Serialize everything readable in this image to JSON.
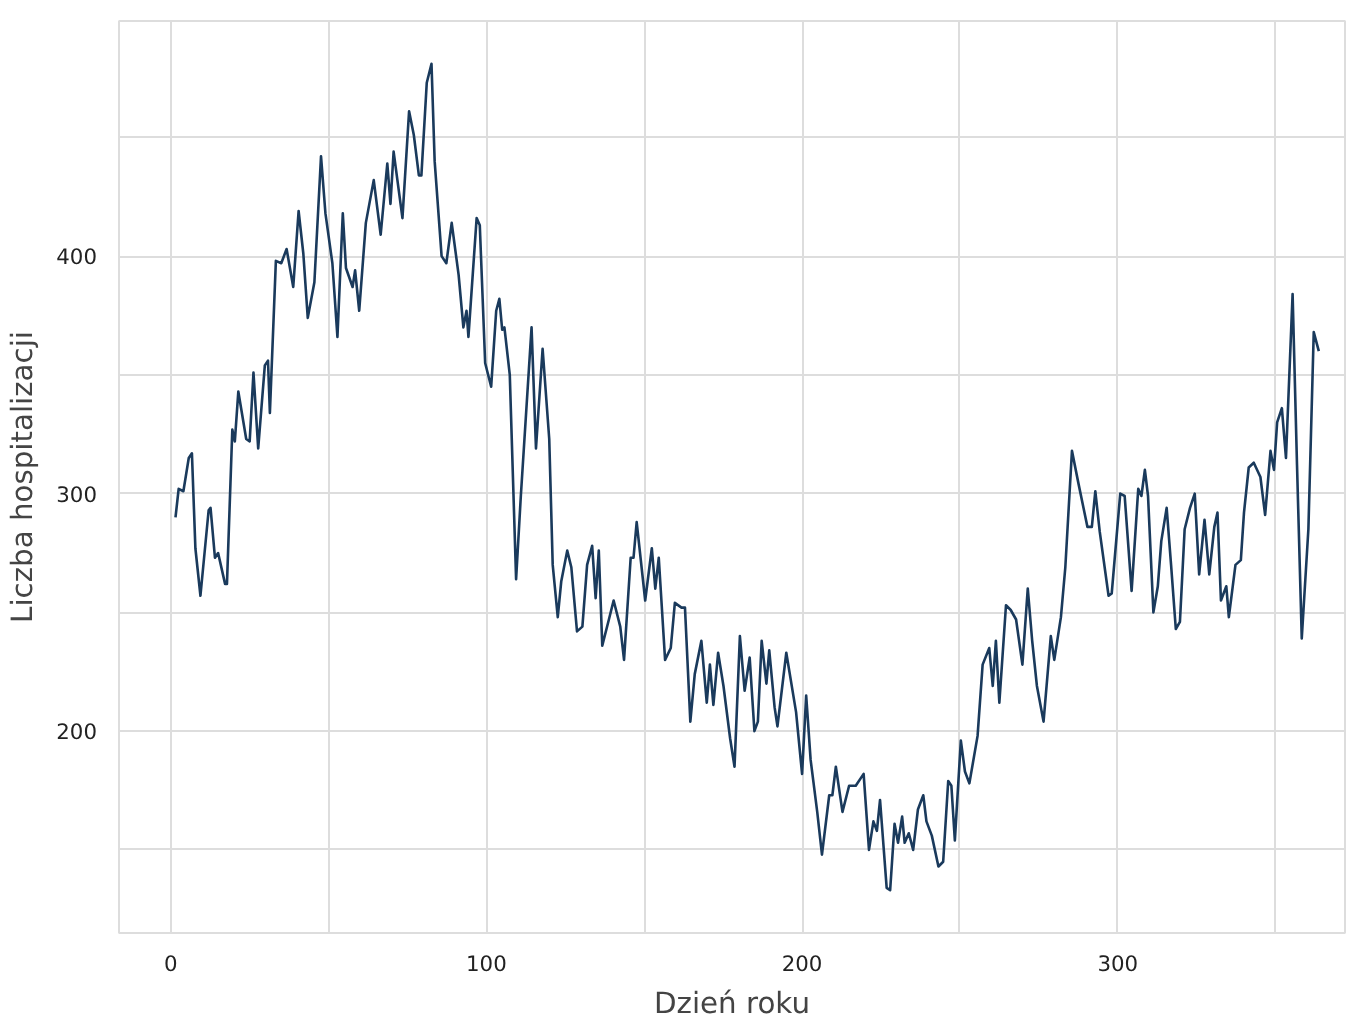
{
  "chart_data": {
    "type": "line",
    "xlabel": "Dzień roku",
    "ylabel": "Liczba hospitalizacji",
    "x": [
      1.5,
      2.5,
      4,
      5.7,
      6.7,
      7.8,
      9.4,
      12,
      12.6,
      14,
      15,
      17.2,
      17.8,
      19.5,
      20.3,
      21.4,
      23.9,
      25,
      26.2,
      27.7,
      29.8,
      30.8,
      31.4,
      33.3,
      35,
      36.7,
      38.8,
      40.5,
      42,
      43.4,
      45.5,
      47.6,
      49,
      51.2,
      52.8,
      54.5,
      55.5,
      57.6,
      58.4,
      59.7,
      61.8,
      64.3,
      66.5,
      68.6,
      69.6,
      70.6,
      73.4,
      75.5,
      77,
      78.6,
      79.4,
      81.1,
      82.6,
      83.6,
      85.8,
      87.3,
      89,
      91.2,
      92.7,
      93.7,
      94.3,
      96.9,
      97.9,
      99.6,
      101.5,
      103.1,
      104.1,
      105,
      105.7,
      107.4,
      109.4,
      110.9,
      114.3,
      115.7,
      117.8,
      119.9,
      121,
      122.6,
      123.7,
      125.6,
      126.9,
      128.7,
      130.4,
      131.9,
      133.5,
      134.6,
      135.6,
      136.7,
      138.8,
      140.3,
      142.4,
      143.6,
      145.7,
      146.6,
      147.6,
      150.3,
      152.4,
      153.5,
      154.6,
      156.6,
      158.4,
      159.7,
      161.8,
      162.9,
      164.6,
      166,
      168.1,
      169.8,
      170.8,
      171.9,
      173.4,
      175.1,
      177.2,
      178.6,
      180.3,
      181.8,
      183.4,
      184.9,
      186,
      187.2,
      188.7,
      189.6,
      191.3,
      192.2,
      195,
      198.1,
      200,
      201.3,
      202.7,
      204.8,
      206.3,
      208.6,
      209.6,
      210.7,
      212.8,
      214.9,
      217,
      219.5,
      221.2,
      222.6,
      223.7,
      224.7,
      226.8,
      227.9,
      229.3,
      230.4,
      231.7,
      232.5,
      233.8,
      235.2,
      236.7,
      238.4,
      239.4,
      241.1,
      243.2,
      244.7,
      246.3,
      247.3,
      248.4,
      250.3,
      251.6,
      253,
      255.6,
      257.2,
      259.3,
      260.4,
      261.4,
      262.5,
      264.6,
      266.1,
      267.8,
      269.8,
      271.5,
      272.9,
      274.4,
      276.5,
      278.8,
      279.9,
      282,
      283.4,
      285.5,
      287.6,
      290.4,
      291.8,
      292.9,
      294.3,
      297.1,
      298.1,
      300.8,
      302.2,
      304.4,
      306.5,
      307.5,
      308.6,
      309.6,
      311.3,
      312.7,
      313.8,
      315.5,
      316.9,
      318.4,
      319.7,
      321.2,
      322.9,
      324.4,
      325.8,
      327.5,
      329,
      330.6,
      331.6,
      332.7,
      334.4,
      335.2,
      337.3,
      339,
      340,
      341.5,
      343.1,
      345.2,
      346.7,
      348.4,
      349.5,
      350.5,
      352,
      353.3,
      355.4,
      356.8,
      358.3,
      360.4,
      362.1,
      363.7
    ],
    "series": [
      {
        "color": "#1a3a5c",
        "values": [
          290,
          302,
          301,
          315,
          317,
          277,
          257,
          293,
          294,
          273,
          275,
          262,
          262,
          327,
          322,
          343,
          323,
          322,
          351,
          319,
          354,
          356,
          334,
          398,
          397,
          403,
          387,
          419,
          401,
          374,
          389,
          442,
          418,
          397,
          366,
          418,
          395,
          387,
          394,
          377,
          414,
          432,
          409,
          439,
          422,
          444,
          416,
          461,
          451,
          434,
          434,
          473,
          481,
          440,
          400,
          397,
          414,
          392,
          370,
          377,
          366,
          416,
          413,
          355,
          345,
          377,
          382,
          369,
          370,
          350,
          264,
          299,
          370,
          319,
          361,
          323,
          270,
          248,
          263,
          276,
          269,
          242,
          244,
          270,
          278,
          256,
          276,
          236,
          247,
          255,
          244,
          230,
          273,
          273,
          288,
          255,
          277,
          260,
          273,
          230,
          235,
          254,
          252,
          252,
          204,
          224,
          238,
          212,
          228,
          211,
          233,
          219,
          197,
          185,
          240,
          217,
          231,
          200,
          204,
          238,
          220,
          234,
          210,
          202,
          233,
          208,
          182,
          215,
          188,
          166,
          148,
          173,
          173,
          185,
          166,
          177,
          177,
          182,
          150,
          162,
          158,
          171,
          134,
          133,
          161,
          153,
          164,
          153,
          157,
          150,
          167,
          173,
          162,
          156,
          143,
          145,
          179,
          177,
          154,
          196,
          183,
          178,
          198,
          228,
          235,
          219,
          238,
          212,
          253,
          251,
          247,
          228,
          260,
          238,
          219,
          204,
          240,
          230,
          248,
          269,
          318,
          304,
          286,
          286,
          301,
          284,
          257,
          258,
          300,
          299,
          259,
          302,
          299,
          310,
          299,
          250,
          261,
          280,
          294,
          270,
          243,
          246,
          285,
          294,
          300,
          266,
          289,
          266,
          286,
          292,
          255,
          261,
          248,
          270,
          272,
          292,
          311,
          313,
          307,
          291,
          318,
          310,
          330,
          336,
          315,
          384,
          312,
          239,
          285,
          368,
          360
        ]
      }
    ],
    "xlim": [
      -16.4,
      372
    ],
    "ylim": [
      115,
      499
    ],
    "xticks": [
      0,
      {
        "value": 50,
        "label": null
      },
      100,
      {
        "value": 150,
        "label": null
      },
      200,
      {
        "value": 250,
        "label": null
      },
      300,
      {
        "value": 350,
        "label": null
      }
    ],
    "yticks": [
      {
        "value": 150,
        "label": null
      },
      200,
      {
        "value": 250,
        "label": null
      },
      300,
      {
        "value": 350,
        "label": null
      },
      400,
      {
        "value": 450,
        "label": null
      }
    ],
    "grid": true,
    "line_style": "solid",
    "marker": "none"
  }
}
